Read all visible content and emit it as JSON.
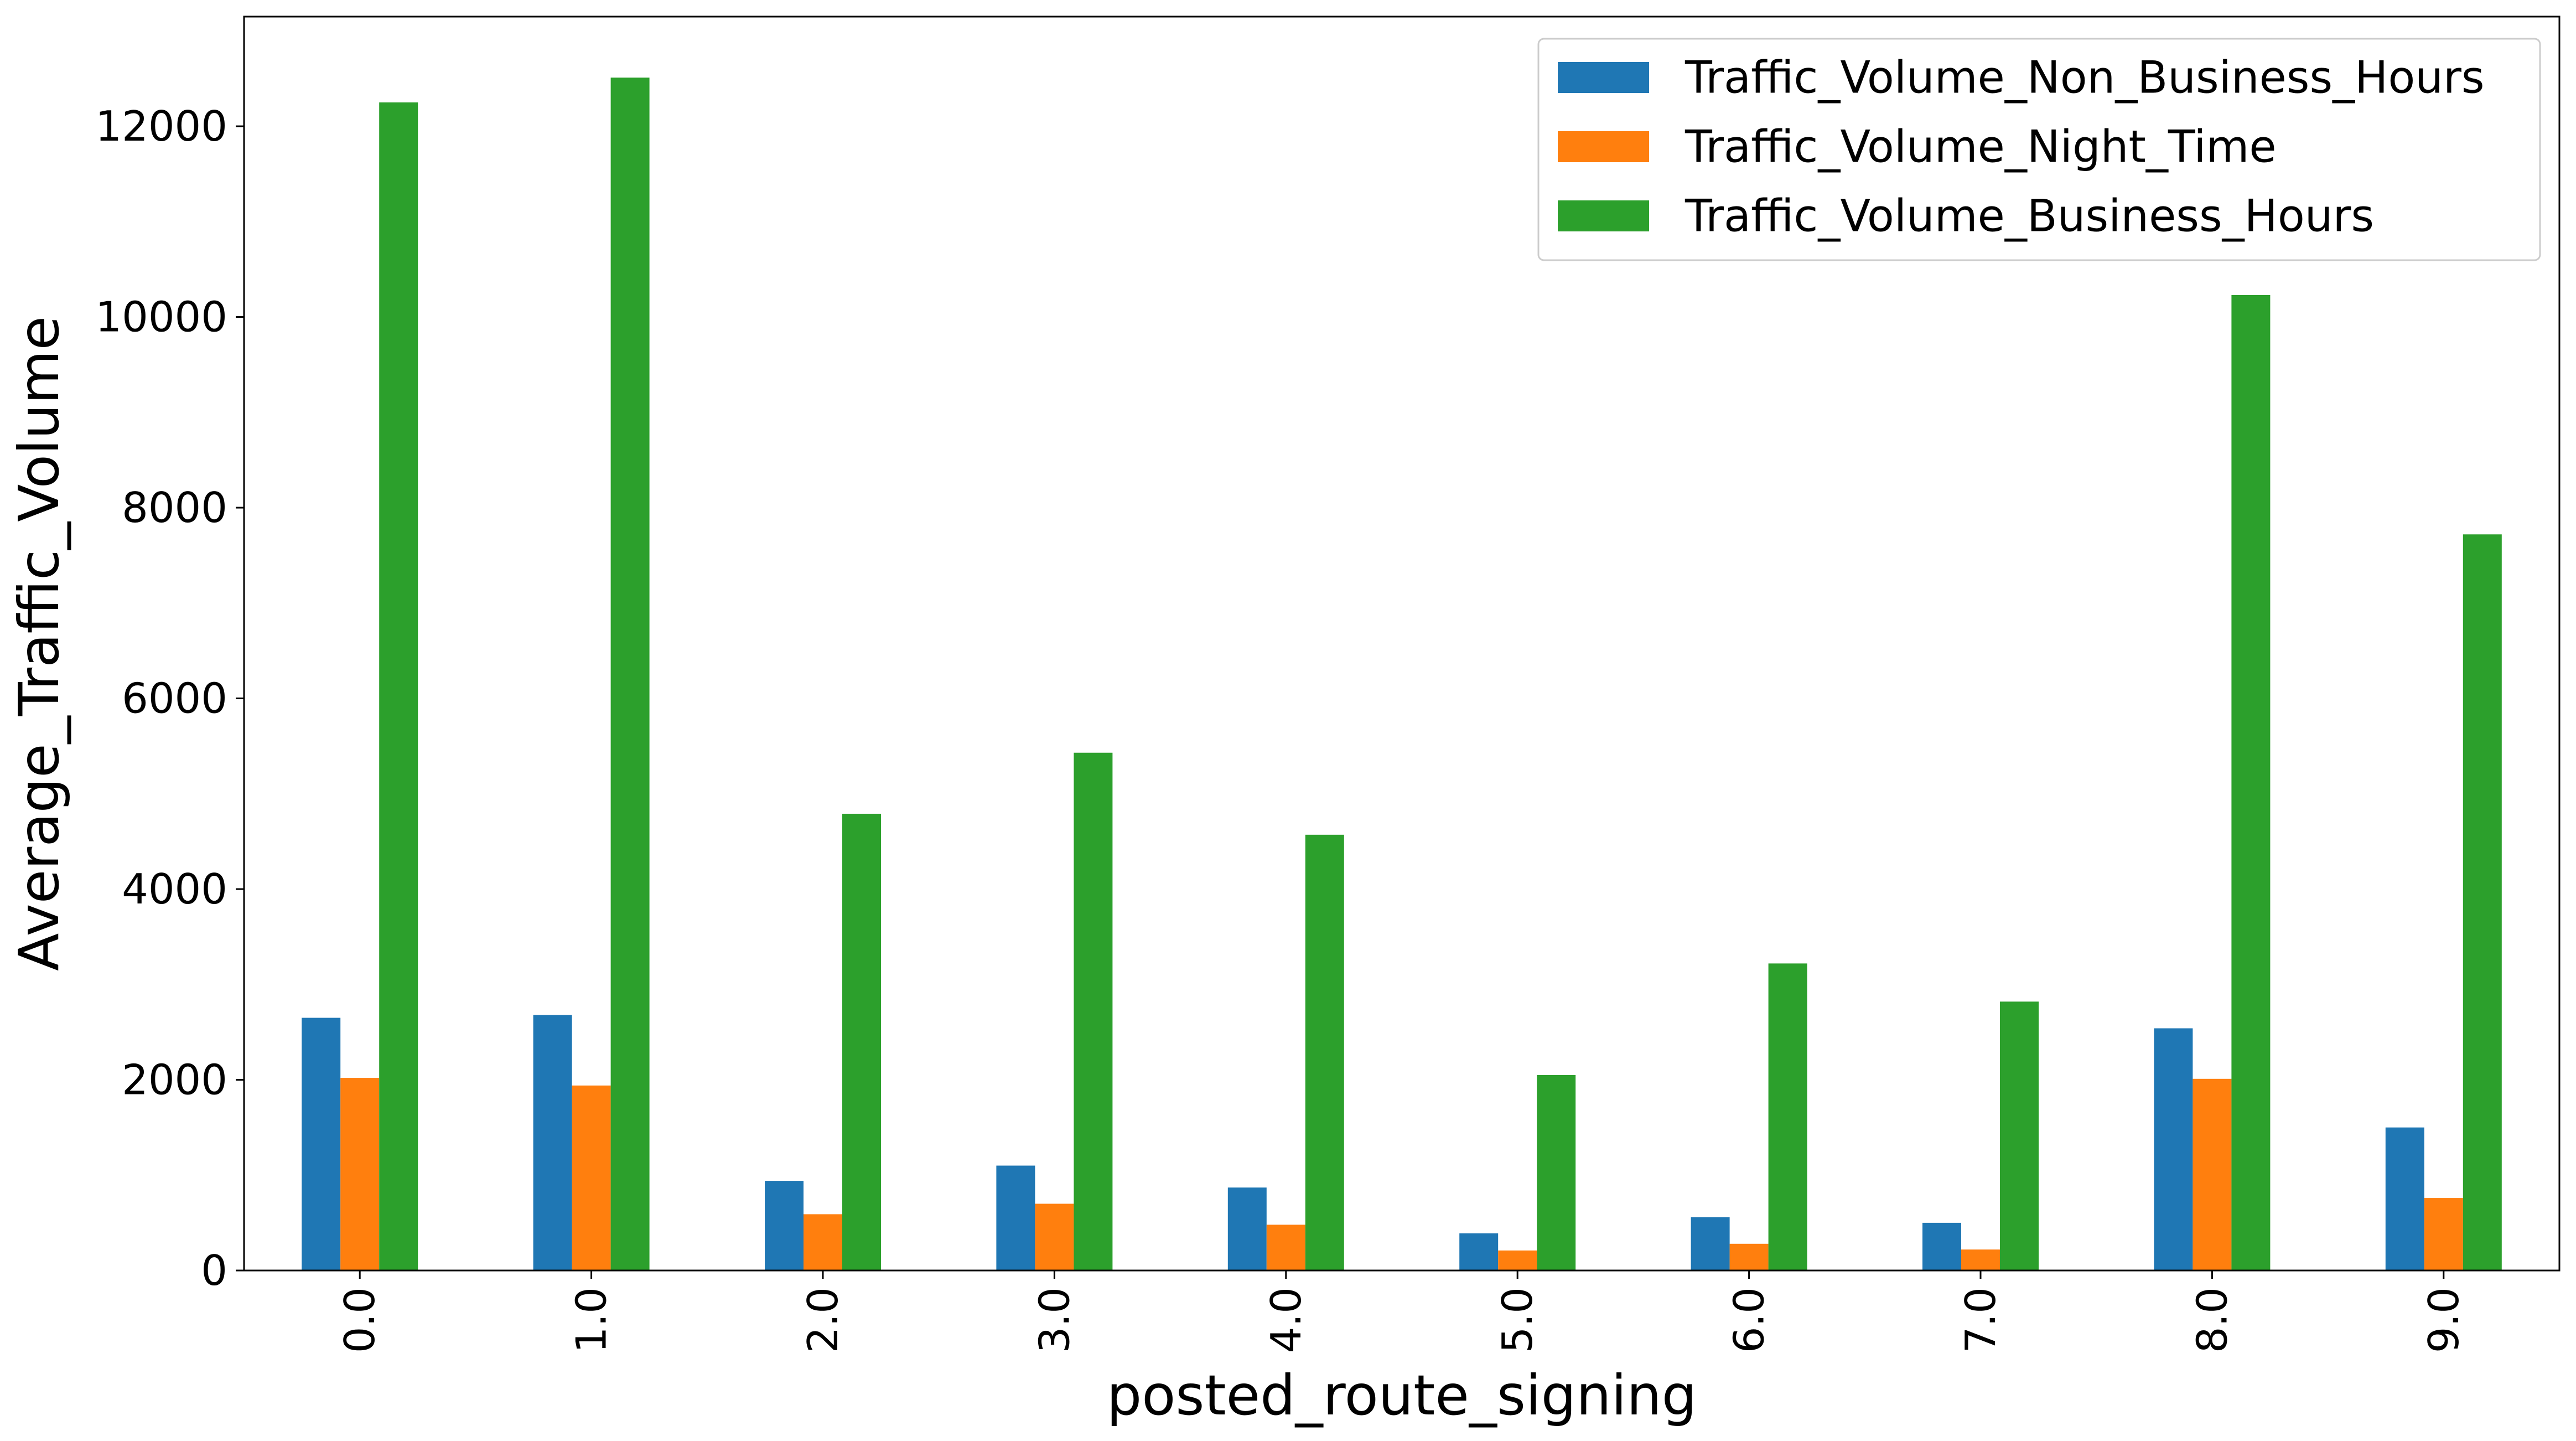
{
  "chart_data": {
    "type": "bar",
    "xlabel": "posted_route_signing",
    "ylabel": "Average_Traffic_Volume",
    "categories": [
      "0.0",
      "1.0",
      "2.0",
      "3.0",
      "4.0",
      "5.0",
      "6.0",
      "7.0",
      "8.0",
      "9.0"
    ],
    "series": [
      {
        "name": "Traffic_Volume_Non_Business_Hours",
        "color": "#1f77b4",
        "values": [
          2650,
          2680,
          940,
          1100,
          870,
          390,
          560,
          500,
          2540,
          1500
        ]
      },
      {
        "name": "Traffic_Volume_Night_Time",
        "color": "#ff7f0e",
        "values": [
          2020,
          1940,
          590,
          700,
          480,
          210,
          280,
          220,
          2010,
          760
        ]
      },
      {
        "name": "Traffic_Volume_Business_Hours",
        "color": "#2ca02c",
        "values": [
          12250,
          12510,
          4790,
          5430,
          4570,
          2050,
          3220,
          2820,
          10230,
          7720
        ]
      }
    ],
    "ylim": [
      0,
      13150
    ],
    "yticks": [
      0,
      2000,
      4000,
      6000,
      8000,
      10000,
      12000
    ],
    "grid": false,
    "legend_position": "top-right"
  }
}
